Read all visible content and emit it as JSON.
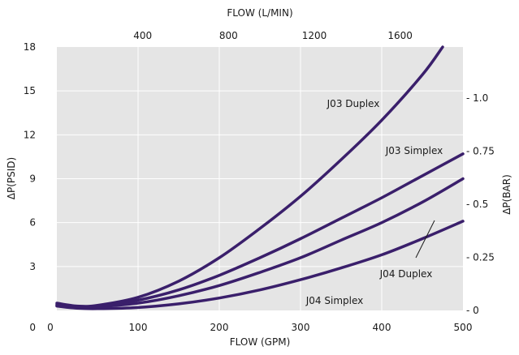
{
  "chart_data": {
    "type": "line",
    "title": "",
    "xlabel": "FLOW (GPM)",
    "xlabel_top": "FLOW (L/MIN)",
    "ylabel": "ΔP(PSID)",
    "ylabel_right": "ΔP(BAR)",
    "xlim": [
      0,
      500
    ],
    "ylim": [
      0,
      18
    ],
    "x_ticks": [
      0,
      100,
      200,
      300,
      400,
      500
    ],
    "x_tick_labels": [
      "0",
      "100",
      "200",
      "300",
      "400",
      "500"
    ],
    "y_ticks": [
      0,
      3,
      6,
      9,
      12,
      15,
      18
    ],
    "y_tick_labels": [
      "0",
      "3",
      "6",
      "9",
      "12",
      "15",
      "18"
    ],
    "top_ticks_lpm": [
      400,
      800,
      1200,
      1600
    ],
    "top_tick_labels": [
      "400",
      "800",
      "1200",
      "1600"
    ],
    "right_ticks_bar": [
      0,
      0.25,
      0.5,
      0.75,
      1.0
    ],
    "right_tick_labels": [
      "- 0",
      "- 0.25",
      "- 0.5",
      "- 0.75",
      "- 1.0"
    ],
    "grid": true,
    "series": [
      {
        "name": "J03 Duplex",
        "x": [
          0,
          25,
          50,
          100,
          150,
          200,
          250,
          300,
          350,
          400,
          450,
          475
        ],
        "y": [
          0.5,
          0.3,
          0.35,
          0.9,
          2.0,
          3.6,
          5.6,
          7.8,
          10.3,
          13.0,
          16.1,
          18.0
        ]
      },
      {
        "name": "J03 Simplex",
        "x": [
          0,
          25,
          50,
          100,
          150,
          200,
          250,
          300,
          350,
          400,
          450,
          500
        ],
        "y": [
          0.4,
          0.25,
          0.3,
          0.7,
          1.4,
          2.4,
          3.6,
          4.9,
          6.3,
          7.7,
          9.2,
          10.7
        ]
      },
      {
        "name": "J04 Duplex",
        "x": [
          0,
          25,
          50,
          100,
          150,
          200,
          250,
          300,
          350,
          400,
          450,
          500
        ],
        "y": [
          0.35,
          0.2,
          0.25,
          0.5,
          1.0,
          1.7,
          2.6,
          3.6,
          4.8,
          6.0,
          7.4,
          9.0
        ]
      },
      {
        "name": "J04 Simplex",
        "x": [
          0,
          25,
          50,
          100,
          150,
          200,
          250,
          300,
          350,
          400,
          450,
          500
        ],
        "y": [
          0.3,
          0.15,
          0.12,
          0.2,
          0.45,
          0.85,
          1.4,
          2.1,
          2.9,
          3.8,
          4.9,
          6.1
        ]
      }
    ],
    "colors": {
      "line": "#3a1f6b",
      "plot_bg": "#e5e5e5",
      "grid": "#ffffff",
      "pointer": "#1a1a1a"
    }
  }
}
